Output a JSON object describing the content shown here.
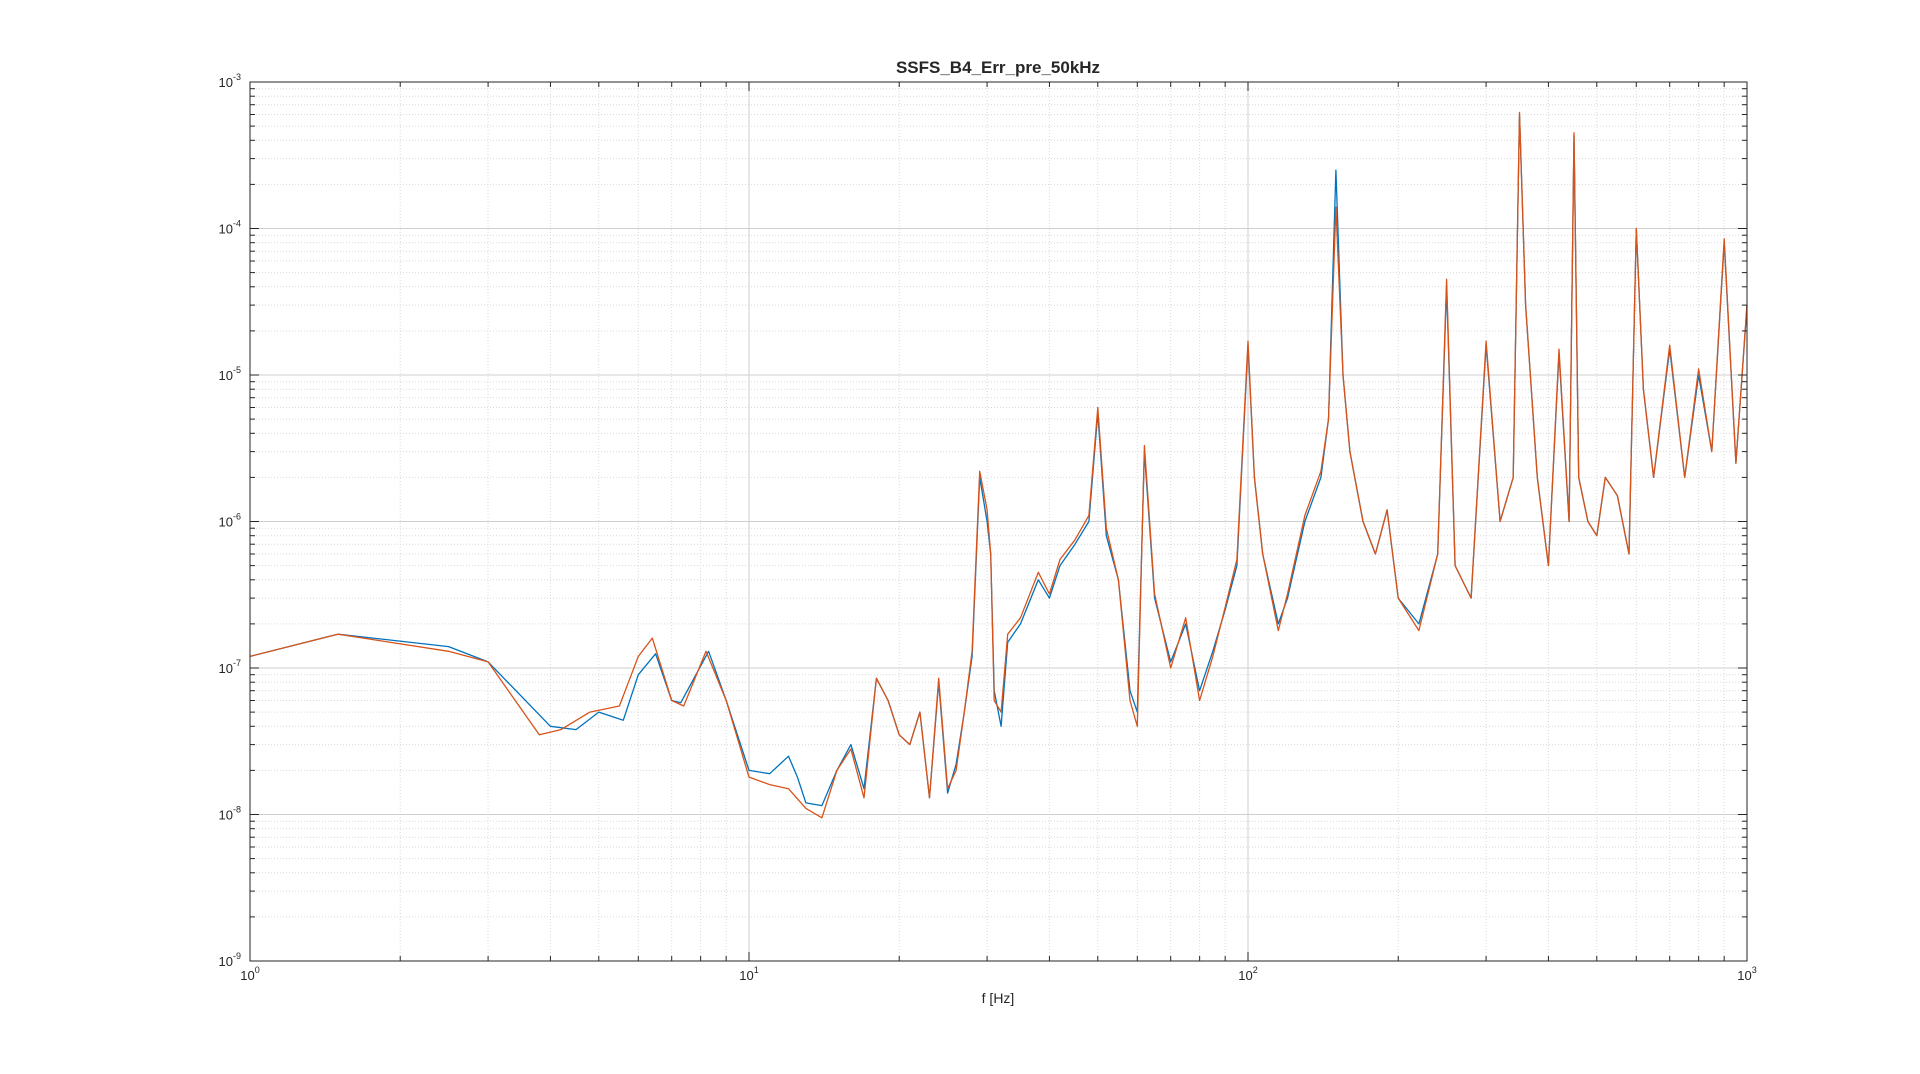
{
  "chart_data": {
    "type": "line",
    "title": "SSFS_B4_Err_pre_50kHz",
    "xlabel": "f [Hz]",
    "ylabel": "",
    "xscale": "log",
    "yscale": "log",
    "xlim": [
      1,
      1000
    ],
    "ylim": [
      1e-09,
      0.001
    ],
    "grid": true,
    "legend": "none",
    "x_ticks": [
      {
        "base": "10",
        "exp": "0",
        "value": 1
      },
      {
        "base": "10",
        "exp": "1",
        "value": 10
      },
      {
        "base": "10",
        "exp": "2",
        "value": 100
      },
      {
        "base": "10",
        "exp": "3",
        "value": 1000
      }
    ],
    "y_ticks": [
      {
        "base": "10",
        "exp": "-9",
        "value": 1e-09
      },
      {
        "base": "10",
        "exp": "-8",
        "value": 1e-08
      },
      {
        "base": "10",
        "exp": "-7",
        "value": 1e-07
      },
      {
        "base": "10",
        "exp": "-6",
        "value": 1e-06
      },
      {
        "base": "10",
        "exp": "-5",
        "value": 1e-05
      },
      {
        "base": "10",
        "exp": "-4",
        "value": 0.0001
      },
      {
        "base": "10",
        "exp": "-3",
        "value": 0.001
      }
    ],
    "series": [
      {
        "color": "#0072BD",
        "x": [
          1,
          1.5,
          2.5,
          3.0,
          4.0,
          4.5,
          5.0,
          5.6,
          6.0,
          6.5,
          7.0,
          7.3,
          8.3,
          9.0,
          10,
          11,
          12,
          12.5,
          13,
          14,
          15,
          16,
          17,
          18,
          19,
          20,
          21,
          22,
          23,
          24,
          25,
          26,
          27,
          28,
          29,
          30,
          30.5,
          31,
          32,
          33,
          35,
          38,
          40,
          42,
          45,
          48,
          50,
          52,
          55,
          58,
          60,
          62,
          65,
          70,
          75,
          80,
          85,
          90,
          95,
          100,
          103,
          107,
          115,
          120,
          130,
          140,
          145,
          150,
          155,
          160,
          170,
          180,
          190,
          200,
          220,
          240,
          250,
          260,
          280,
          300,
          320,
          340,
          350,
          360,
          380,
          400,
          420,
          440,
          450,
          460,
          480,
          500,
          520,
          550,
          580,
          600,
          620,
          650,
          700,
          750,
          800,
          850,
          900,
          950,
          1000
        ],
        "y": [
          1.2e-07,
          1.7e-07,
          1.4e-07,
          1.1e-07,
          4e-08,
          3.8e-08,
          5e-08,
          4.4e-08,
          9e-08,
          1.25e-07,
          6e-08,
          5.8e-08,
          1.3e-07,
          6e-08,
          2e-08,
          1.9e-08,
          2.5e-08,
          1.8e-08,
          1.2e-08,
          1.15e-08,
          2e-08,
          3e-08,
          1.5e-08,
          8.5e-08,
          6e-08,
          3.5e-08,
          3e-08,
          5e-08,
          1.3e-08,
          8e-08,
          1.4e-08,
          2.2e-08,
          5e-08,
          1.2e-07,
          2e-06,
          1e-06,
          6e-07,
          7e-08,
          4e-08,
          1.5e-07,
          2e-07,
          4e-07,
          3e-07,
          5e-07,
          7e-07,
          1e-06,
          5.5e-06,
          8e-07,
          4e-07,
          7e-08,
          5e-08,
          3e-06,
          3e-07,
          1.1e-07,
          2e-07,
          7e-08,
          1.3e-07,
          2.5e-07,
          5e-07,
          1.6e-05,
          2e-06,
          6e-07,
          2e-07,
          3e-07,
          1e-06,
          2e-06,
          5e-06,
          0.00025,
          1e-05,
          3e-06,
          1e-06,
          6e-07,
          1.2e-06,
          3e-07,
          2e-07,
          6e-07,
          4e-05,
          5e-07,
          3e-07,
          1.6e-05,
          1e-06,
          2e-06,
          0.0006,
          3e-05,
          2e-06,
          5e-07,
          1.4e-05,
          1e-06,
          0.00043,
          2e-06,
          1e-06,
          8e-07,
          2e-06,
          1.5e-06,
          6e-07,
          0.0001,
          8e-06,
          2e-06,
          1.5e-05,
          2e-06,
          1e-05,
          3e-06,
          8e-05,
          2.5e-06,
          3e-05
        ]
      },
      {
        "color": "#D95319",
        "x": [
          1,
          1.5,
          2.5,
          3.0,
          3.8,
          4.2,
          4.8,
          5.5,
          6.0,
          6.4,
          7.0,
          7.4,
          8.2,
          9.0,
          10,
          11,
          12,
          13,
          14,
          15,
          16,
          17,
          18,
          19,
          20,
          21,
          22,
          23,
          24,
          25,
          26,
          27,
          28,
          29,
          30,
          30.5,
          31,
          32,
          33,
          35,
          38,
          40,
          42,
          45,
          48,
          50,
          52,
          55,
          58,
          60,
          62,
          65,
          70,
          75,
          80,
          85,
          90,
          95,
          100,
          103,
          107,
          115,
          120,
          130,
          140,
          145,
          150,
          155,
          160,
          170,
          180,
          190,
          200,
          220,
          240,
          250,
          260,
          280,
          300,
          320,
          340,
          350,
          360,
          380,
          400,
          420,
          440,
          450,
          460,
          480,
          500,
          520,
          550,
          580,
          600,
          620,
          650,
          700,
          750,
          800,
          850,
          900,
          950,
          1000
        ],
        "y": [
          1.2e-07,
          1.7e-07,
          1.3e-07,
          1.1e-07,
          3.5e-08,
          3.8e-08,
          5e-08,
          5.5e-08,
          1.2e-07,
          1.6e-07,
          6e-08,
          5.5e-08,
          1.3e-07,
          6e-08,
          1.8e-08,
          1.6e-08,
          1.5e-08,
          1.1e-08,
          9.5e-09,
          2e-08,
          2.8e-08,
          1.3e-08,
          8.5e-08,
          6e-08,
          3.5e-08,
          3e-08,
          5e-08,
          1.3e-08,
          8.5e-08,
          1.5e-08,
          2e-08,
          5e-08,
          1.3e-07,
          2.2e-06,
          1.2e-06,
          6e-07,
          6e-08,
          5e-08,
          1.7e-07,
          2.2e-07,
          4.5e-07,
          3.2e-07,
          5.5e-07,
          7.5e-07,
          1.1e-06,
          6e-06,
          9e-07,
          4e-07,
          6e-08,
          4e-08,
          3.3e-06,
          3.2e-07,
          1e-07,
          2.2e-07,
          6e-08,
          1.2e-07,
          2.6e-07,
          5.5e-07,
          1.7e-05,
          2e-06,
          6e-07,
          1.8e-07,
          3.2e-07,
          1.1e-06,
          2.2e-06,
          5e-06,
          0.00014,
          1e-05,
          3e-06,
          1e-06,
          6e-07,
          1.2e-06,
          3e-07,
          1.8e-07,
          6e-07,
          4.5e-05,
          5e-07,
          3e-07,
          1.7e-05,
          1e-06,
          2e-06,
          0.00062,
          3e-05,
          2e-06,
          5e-07,
          1.5e-05,
          1e-06,
          0.00045,
          2e-06,
          1e-06,
          8e-07,
          2e-06,
          1.5e-06,
          6e-07,
          0.0001,
          8e-06,
          2e-06,
          1.6e-05,
          2e-06,
          1.1e-05,
          3e-06,
          8.5e-05,
          2.5e-06,
          3e-05
        ]
      }
    ]
  }
}
